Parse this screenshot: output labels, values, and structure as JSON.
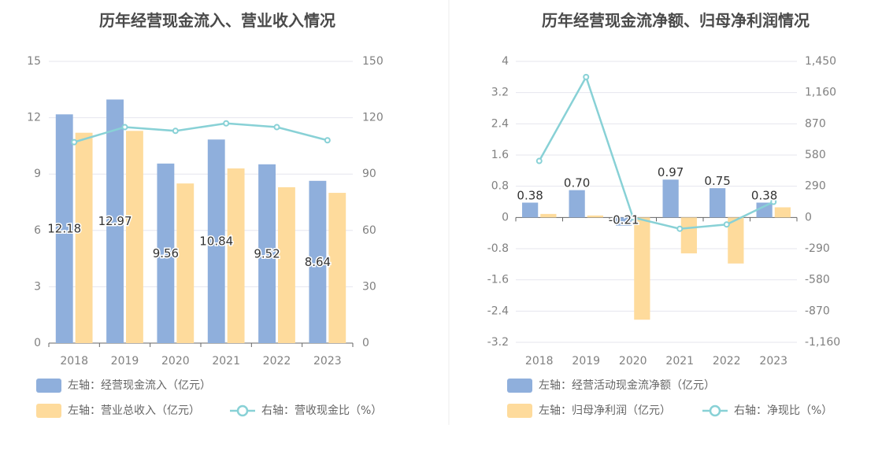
{
  "chart_data": [
    {
      "type": "bar",
      "title": "历年经营现金流入、营业收入情况",
      "categories": [
        "2018",
        "2019",
        "2020",
        "2021",
        "2022",
        "2023"
      ],
      "yticks_left": [
        "0",
        "3",
        "6",
        "9",
        "12",
        "15"
      ],
      "yticks_right": [
        "0",
        "30",
        "60",
        "90",
        "120",
        "150"
      ],
      "ylim_left": [
        0,
        15
      ],
      "ylim_right": [
        0,
        150
      ],
      "series": [
        {
          "name": "左轴：经营现金流入（亿元）",
          "axis": "left",
          "kind": "bar",
          "color": "#8fafdc",
          "values": [
            12.18,
            12.97,
            9.56,
            10.84,
            9.52,
            8.64
          ],
          "labels": [
            "12.18",
            "12.97",
            "9.56",
            "10.84",
            "9.52",
            "8.64"
          ]
        },
        {
          "name": "左轴：营业总收入（亿元）",
          "axis": "left",
          "kind": "bar",
          "color": "#fedb9c",
          "values": [
            11.2,
            11.3,
            8.5,
            9.3,
            8.3,
            8.0
          ]
        },
        {
          "name": "右轴：营收现金比（%）",
          "axis": "right",
          "kind": "line",
          "color": "#88d1d6",
          "values": [
            107,
            115,
            113,
            117,
            115,
            108
          ]
        }
      ],
      "legend_position": "bottom"
    },
    {
      "type": "bar",
      "title": "历年经营现金流净额、归母净利润情况",
      "categories": [
        "2018",
        "2019",
        "2020",
        "2021",
        "2022",
        "2023"
      ],
      "yticks_left": [
        "-3.2",
        "-2.4",
        "-1.6",
        "-0.8",
        "0",
        "0.8",
        "1.6",
        "2.4",
        "3.2",
        "4"
      ],
      "yticks_right": [
        "-1,160",
        "-870",
        "-580",
        "-290",
        "0",
        "290",
        "580",
        "870",
        "1,160",
        "1,450"
      ],
      "ylim_left": [
        -3.2,
        4
      ],
      "ylim_right": [
        -1160,
        1450
      ],
      "series": [
        {
          "name": "左轴：经营活动现金流净额（亿元）",
          "axis": "left",
          "kind": "bar",
          "color": "#8fafdc",
          "values": [
            0.38,
            0.7,
            -0.21,
            0.97,
            0.75,
            0.38
          ],
          "labels": [
            "0.38",
            "0.70",
            "-0.21",
            "0.97",
            "0.75",
            "0.38"
          ]
        },
        {
          "name": "左轴：归母净利润（亿元）",
          "axis": "left",
          "kind": "bar",
          "color": "#fedb9c",
          "values": [
            0.09,
            0.05,
            -2.62,
            -0.92,
            -1.18,
            0.26
          ]
        },
        {
          "name": "右轴：净现比（%）",
          "axis": "right",
          "kind": "line",
          "color": "#88d1d6",
          "values": [
            525,
            1305,
            0,
            -105,
            -65,
            145
          ]
        }
      ],
      "legend_position": "bottom"
    }
  ]
}
